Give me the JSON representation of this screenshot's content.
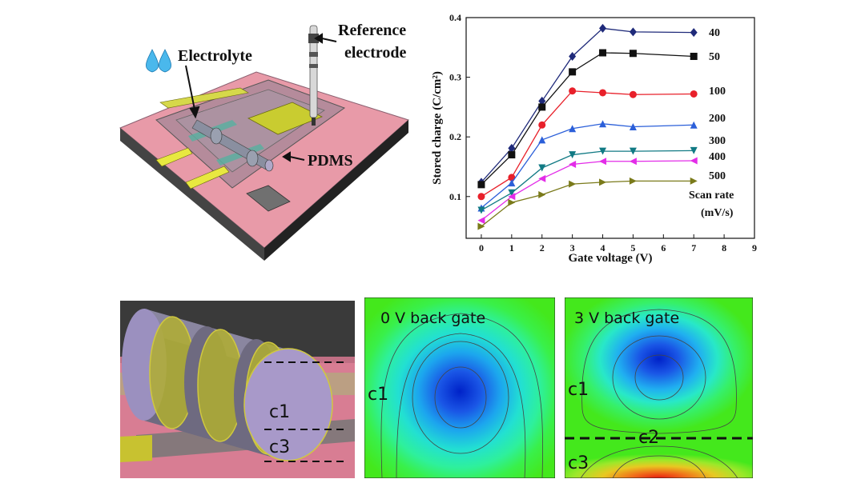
{
  "device": {
    "electrolyte_label": "Electrolyte",
    "reference_label_line1": "Reference",
    "reference_label_line2": "electrode",
    "pdms_label": "PDMS"
  },
  "chart_data": {
    "type": "line",
    "xlabel": "Gate voltage (V)",
    "ylabel": "Stored charge (C/cm²)",
    "xlim": [
      -0.5,
      9
    ],
    "ylim": [
      0.03,
      0.4
    ],
    "xticks": [
      0,
      1,
      2,
      3,
      4,
      5,
      6,
      7,
      8,
      9
    ],
    "yticks": [
      0.1,
      0.2,
      0.3,
      0.4
    ],
    "ytick_labels": [
      "0.1",
      "0.2",
      "0.3",
      "0.4"
    ],
    "legend_title_line1": "Scan rate",
    "legend_title_line2": "(mV/s)",
    "x": [
      0,
      1,
      2,
      3,
      4,
      5,
      7
    ],
    "series": [
      {
        "name": "40",
        "color": "#1f2a7a",
        "marker": "diamond",
        "values": [
          0.124,
          0.181,
          0.26,
          0.335,
          0.382,
          0.376,
          0.375
        ]
      },
      {
        "name": "50",
        "color": "#111111",
        "marker": "square",
        "values": [
          0.12,
          0.17,
          0.25,
          0.309,
          0.341,
          0.34,
          0.335
        ]
      },
      {
        "name": "100",
        "color": "#e8202a",
        "marker": "circle",
        "values": [
          0.1,
          0.132,
          0.22,
          0.277,
          0.274,
          0.271,
          0.272
        ]
      },
      {
        "name": "200",
        "color": "#2b5fd9",
        "marker": "triangle-up",
        "values": [
          0.081,
          0.123,
          0.195,
          0.214,
          0.222,
          0.217,
          0.22
        ]
      },
      {
        "name": "300",
        "color": "#117a84",
        "marker": "triangle-down",
        "values": [
          0.077,
          0.106,
          0.148,
          0.17,
          0.176,
          0.176,
          0.177
        ]
      },
      {
        "name": "400",
        "color": "#e32ce8",
        "marker": "triangle-left",
        "values": [
          0.06,
          0.1,
          0.13,
          0.154,
          0.159,
          0.159,
          0.16
        ]
      },
      {
        "name": "500",
        "color": "#7a7a1a",
        "marker": "triangle-right",
        "values": [
          0.05,
          0.09,
          0.103,
          0.121,
          0.124,
          0.126,
          0.126
        ]
      }
    ]
  },
  "nanowire": {
    "label_c1": "c1",
    "label_c3": "c3"
  },
  "sim_left": {
    "title": "0 V back gate",
    "label_c1": "c1"
  },
  "sim_right": {
    "title": "3 V back gate",
    "label_c1": "c1",
    "label_c2": "c2",
    "label_c3": "c3"
  }
}
